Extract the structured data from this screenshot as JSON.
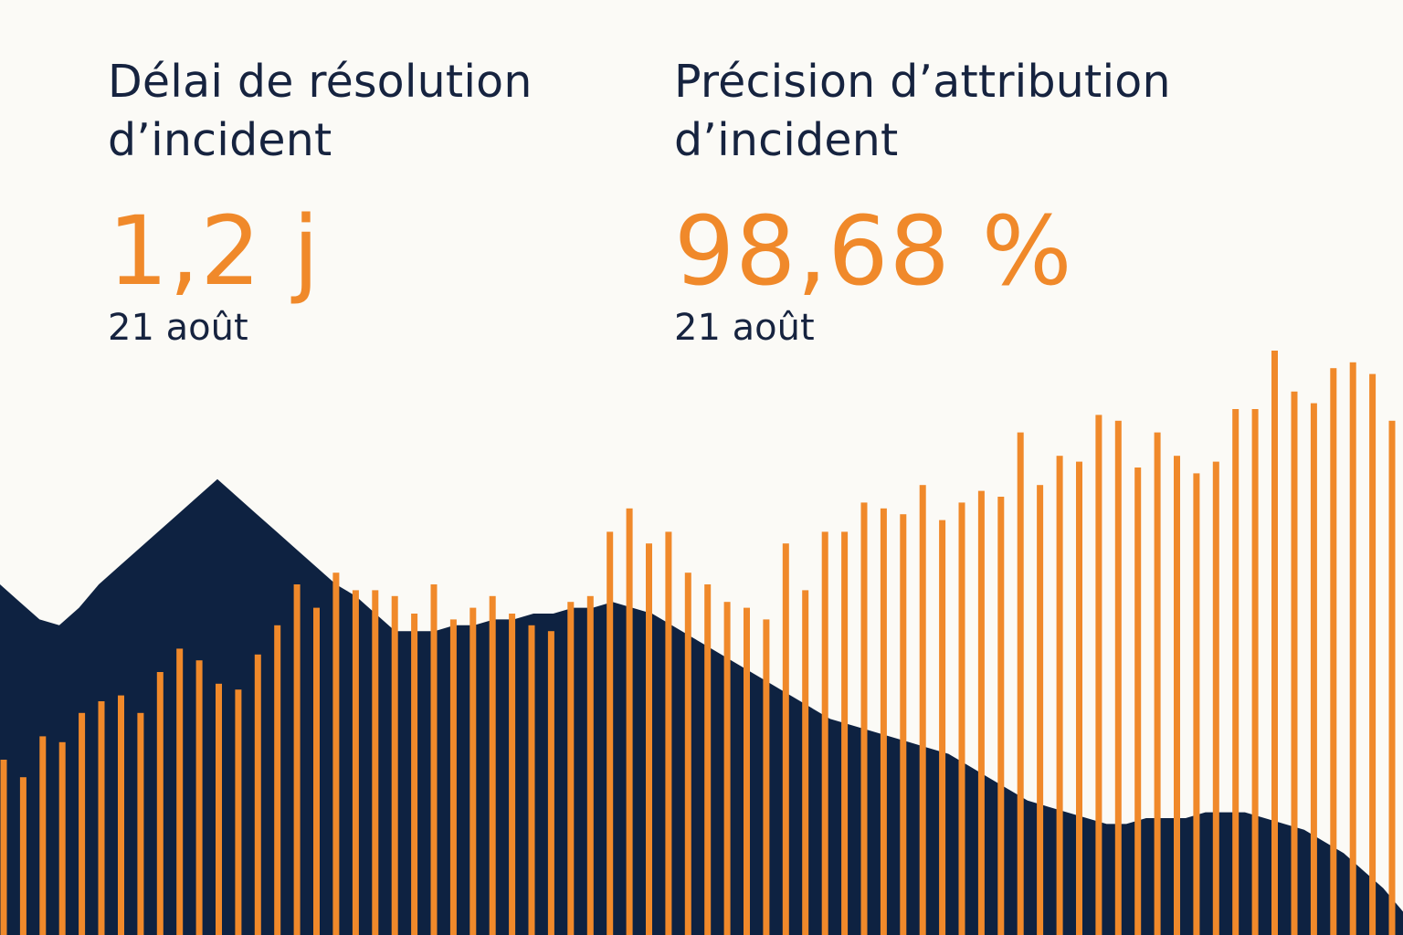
{
  "colors": {
    "background": "#fbfaf6",
    "text": "#16233f",
    "accent": "#f0892a",
    "area": "#0e2241"
  },
  "kpis": {
    "left": {
      "title_line1": "Délai de résolution",
      "title_line2": "d’incident",
      "value": "1,2 j",
      "date": "21 août"
    },
    "right": {
      "title_line1": "Précision d’attribution",
      "title_line2": "d’incident",
      "value": "98,68 %",
      "date": "21 août"
    }
  },
  "chart_data": [
    {
      "type": "area",
      "series_ref": "Délai de résolution d’incident",
      "x_count": 72,
      "ylim": [
        0,
        1
      ],
      "values": [
        0.6,
        0.57,
        0.54,
        0.53,
        0.56,
        0.6,
        0.63,
        0.66,
        0.69,
        0.72,
        0.75,
        0.78,
        0.75,
        0.72,
        0.69,
        0.66,
        0.63,
        0.6,
        0.58,
        0.55,
        0.52,
        0.52,
        0.52,
        0.53,
        0.53,
        0.54,
        0.54,
        0.55,
        0.55,
        0.56,
        0.56,
        0.57,
        0.56,
        0.55,
        0.53,
        0.51,
        0.49,
        0.47,
        0.45,
        0.43,
        0.41,
        0.39,
        0.37,
        0.36,
        0.35,
        0.34,
        0.33,
        0.32,
        0.31,
        0.29,
        0.27,
        0.25,
        0.23,
        0.22,
        0.21,
        0.2,
        0.19,
        0.19,
        0.2,
        0.2,
        0.2,
        0.21,
        0.21,
        0.21,
        0.2,
        0.19,
        0.18,
        0.16,
        0.14,
        0.11,
        0.08,
        0.04
      ]
    },
    {
      "type": "bar",
      "series_ref": "Précision d’attribution d’incident",
      "x_count": 72,
      "ylim": [
        0,
        1
      ],
      "values": [
        0.3,
        0.27,
        0.34,
        0.33,
        0.38,
        0.4,
        0.41,
        0.38,
        0.45,
        0.49,
        0.47,
        0.43,
        0.42,
        0.48,
        0.53,
        0.6,
        0.56,
        0.62,
        0.59,
        0.59,
        0.58,
        0.55,
        0.6,
        0.54,
        0.56,
        0.58,
        0.55,
        0.53,
        0.52,
        0.57,
        0.58,
        0.69,
        0.73,
        0.67,
        0.69,
        0.62,
        0.6,
        0.57,
        0.56,
        0.54,
        0.67,
        0.59,
        0.69,
        0.69,
        0.74,
        0.73,
        0.72,
        0.77,
        0.71,
        0.74,
        0.76,
        0.75,
        0.86,
        0.77,
        0.82,
        0.81,
        0.89,
        0.88,
        0.8,
        0.86,
        0.82,
        0.79,
        0.81,
        0.9,
        0.9,
        1.0,
        0.93,
        0.91,
        0.97,
        0.98,
        0.96,
        0.88
      ]
    }
  ]
}
